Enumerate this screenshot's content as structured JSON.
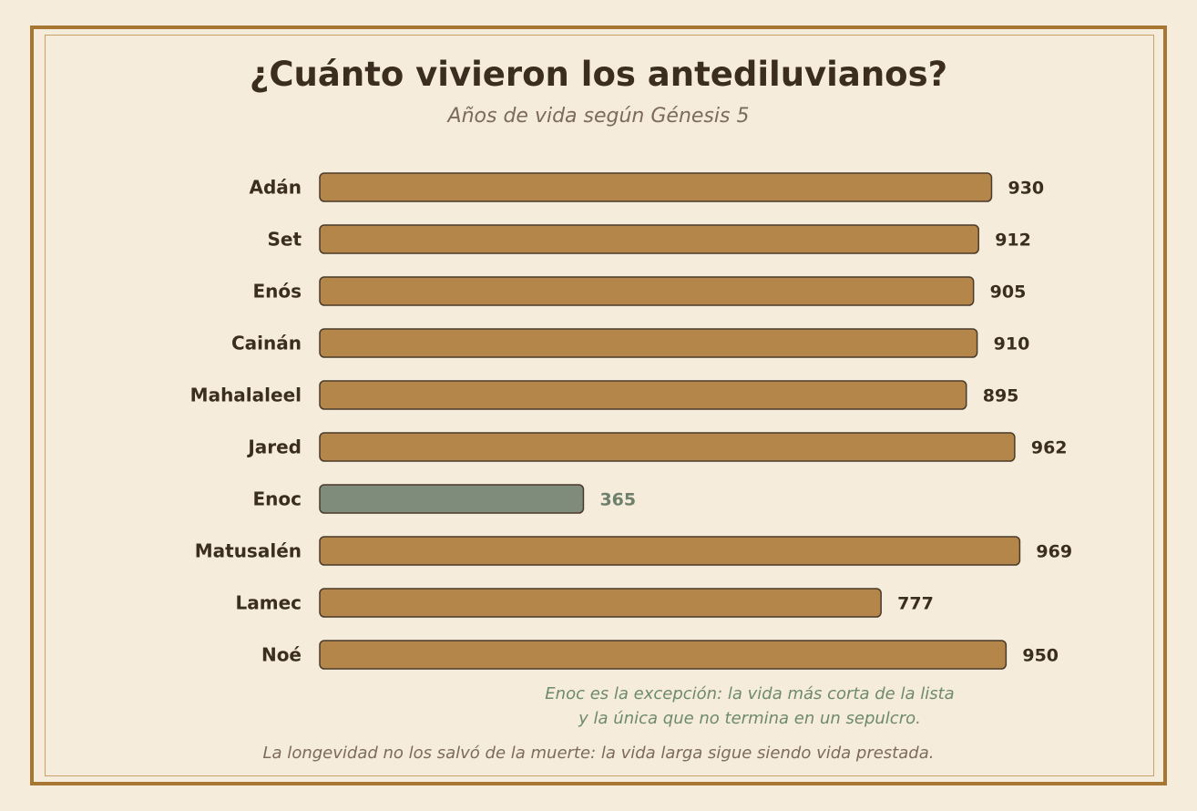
{
  "title": "¿Cuánto vivieron los antediluvianos?",
  "subtitle": "Años de vida según Génesis 5",
  "note": {
    "line1": "Enoc es la excepción: la vida más corta de la lista",
    "line2": "y la única que no termina en un sepulcro."
  },
  "footer": "La longevidad no los salvó de la muerte: la vida larga sigue siendo vida prestada.",
  "colors": {
    "bar": "#b5864a",
    "highlight_bar": "#7f8c7b",
    "bar_stroke": "#4a3a2a",
    "label": "#3b2e21",
    "highlight_label": "#6e806b"
  },
  "chart_data": {
    "type": "bar",
    "orientation": "horizontal",
    "categories": [
      "Adán",
      "Set",
      "Enós",
      "Cainán",
      "Mahalaleel",
      "Jared",
      "Enoc",
      "Matusalén",
      "Lamec",
      "Noé"
    ],
    "values": [
      930,
      912,
      905,
      910,
      895,
      962,
      365,
      969,
      777,
      950
    ],
    "highlight": "Enoc",
    "xlim": [
      0,
      1000
    ],
    "grid": false,
    "legend": false
  }
}
